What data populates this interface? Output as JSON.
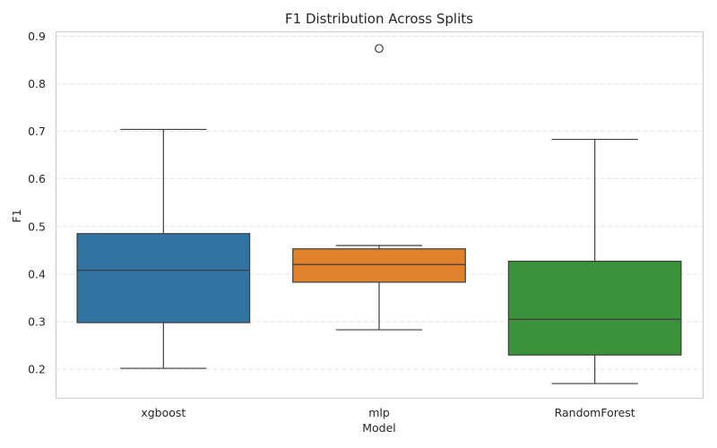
{
  "chart_data": {
    "type": "box",
    "title": "F1 Distribution Across Splits",
    "xlabel": "Model",
    "ylabel": "F1",
    "ylim": [
      0.14,
      0.91
    ],
    "yticks": [
      "0.2",
      "0.3",
      "0.4",
      "0.5",
      "0.6",
      "0.7",
      "0.8",
      "0.9"
    ],
    "grid": true,
    "categories": [
      "xgboost",
      "mlp",
      "RandomForest"
    ],
    "boxes": [
      {
        "category": "xgboost",
        "color": "#3274a1",
        "whisker_low": 0.202,
        "q1": 0.298,
        "median": 0.408,
        "q3": 0.485,
        "whisker_high": 0.704,
        "outliers": []
      },
      {
        "category": "mlp",
        "color": "#e1812c",
        "whisker_low": 0.283,
        "q1": 0.383,
        "median": 0.42,
        "q3": 0.453,
        "whisker_high": 0.46,
        "outliers": [
          0.874
        ]
      },
      {
        "category": "RandomForest",
        "color": "#3a923a",
        "whisker_low": 0.17,
        "q1": 0.23,
        "median": 0.305,
        "q3": 0.427,
        "whisker_high": 0.683,
        "outliers": []
      }
    ]
  }
}
